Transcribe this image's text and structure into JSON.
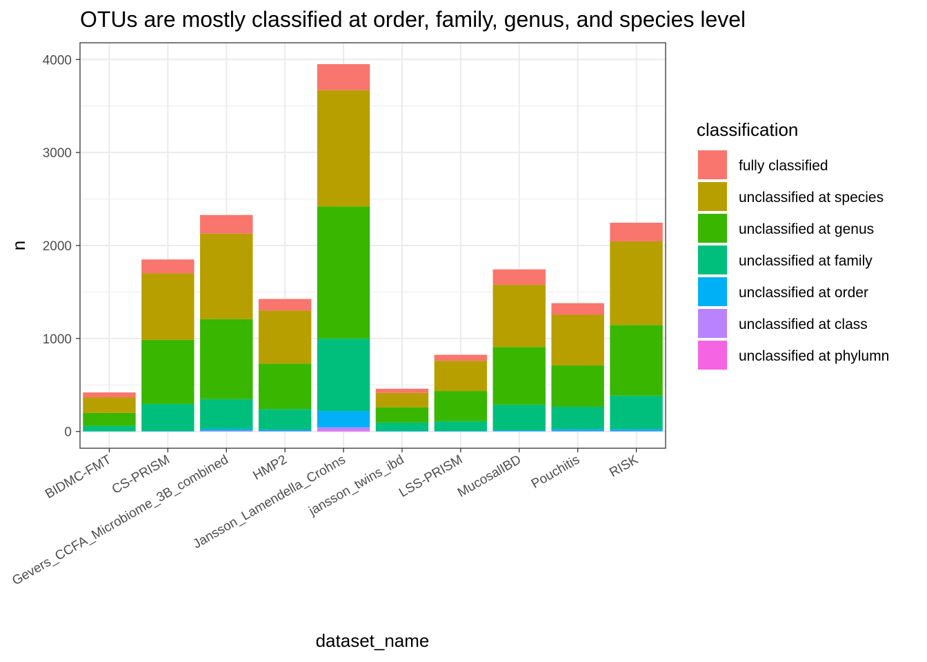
{
  "chart_data": {
    "type": "bar",
    "stacked": true,
    "title": "OTUs are mostly classified at order, family, genus, and species level",
    "xlabel": "dataset_name",
    "ylabel": "n",
    "ylim": [
      -180,
      4180
    ],
    "yticks": [
      0,
      1000,
      2000,
      3000,
      4000
    ],
    "grid": true,
    "legend_position": "right",
    "legend_title": "classification",
    "categories": [
      "BIDMC-FMT",
      "CS-PRISM",
      "Gevers_CCFA_Microbiome_3B_combined",
      "HMP2",
      "Jansson_Lamendella_Crohns",
      "jansson_twins_ibd",
      "LSS-PRISM",
      "MucosalIBD",
      "Pouchitis",
      "RISK"
    ],
    "series": [
      {
        "name": "unclassified at phylumn",
        "color": "#F564E3",
        "values": [
          0,
          0,
          0,
          0,
          10,
          0,
          0,
          0,
          0,
          0
        ]
      },
      {
        "name": "unclassified at class",
        "color": "#B983FF",
        "values": [
          0,
          0,
          8,
          5,
          35,
          0,
          0,
          3,
          5,
          5
        ]
      },
      {
        "name": "unclassified at order",
        "color": "#00B0F6",
        "values": [
          2,
          5,
          20,
          15,
          175,
          5,
          5,
          10,
          20,
          20
        ]
      },
      {
        "name": "unclassified at family",
        "color": "#00BF7D",
        "values": [
          58,
          290,
          320,
          220,
          780,
          90,
          105,
          275,
          240,
          360
        ]
      },
      {
        "name": "unclassified at genus",
        "color": "#39B600",
        "values": [
          140,
          690,
          860,
          490,
          1420,
          165,
          325,
          620,
          445,
          760
        ]
      },
      {
        "name": "unclassified at species",
        "color": "#B79F00",
        "values": [
          165,
          715,
          920,
          570,
          1250,
          155,
          325,
          670,
          545,
          900
        ]
      },
      {
        "name": "fully classified",
        "color": "#F8766D",
        "values": [
          55,
          150,
          200,
          125,
          280,
          45,
          65,
          165,
          125,
          200
        ]
      }
    ]
  }
}
